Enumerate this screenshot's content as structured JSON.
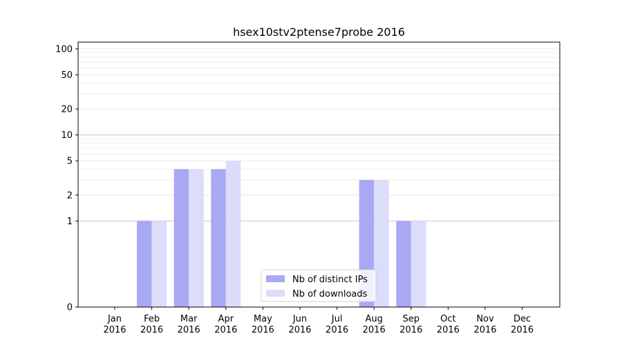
{
  "chart_data": {
    "type": "bar",
    "title": "hsex10stv2ptense7probe 2016",
    "xlabel": "",
    "ylabel": "",
    "yscale": "symlog",
    "ylim": [
      0,
      120
    ],
    "y_ticks": [
      0,
      1,
      2,
      5,
      10,
      20,
      50,
      100
    ],
    "y_tick_labels": [
      "0",
      "1",
      "2",
      "5",
      "10",
      "20",
      "50",
      "100"
    ],
    "categories": [
      "Jan",
      "Feb",
      "Mar",
      "Apr",
      "May",
      "Jun",
      "Jul",
      "Aug",
      "Sep",
      "Oct",
      "Nov",
      "Dec"
    ],
    "category_year": "2016",
    "series": [
      {
        "name": "Nb of distinct IPs",
        "color": "#a8a8f5",
        "values": [
          0,
          1,
          4,
          4,
          0,
          0,
          0,
          3,
          1,
          0,
          0,
          0
        ]
      },
      {
        "name": "Nb of downloads",
        "color": "#dcdcfb",
        "values": [
          0,
          1,
          4,
          5,
          0,
          0,
          0,
          3,
          1,
          0,
          0,
          0
        ]
      }
    ],
    "legend": {
      "placement": "bottom-center"
    },
    "grid": true
  }
}
